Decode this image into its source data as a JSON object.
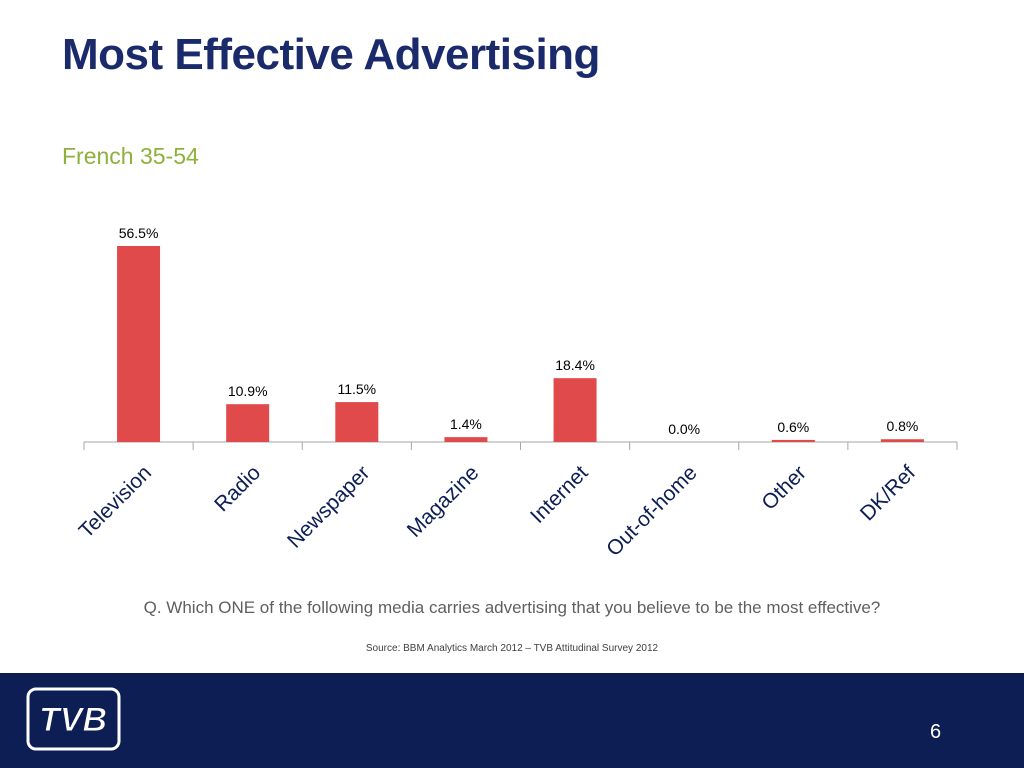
{
  "slide": {
    "title": "Most Effective Advertising",
    "subtitle": "French 35-54",
    "question": "Q. Which ONE of the following media carries advertising that you believe to be the most effective?",
    "source": "Source: BBM Analytics March 2012 – TVB Attitudinal Survey 2012",
    "page_number": "6",
    "logo_text": "TVB"
  },
  "colors": {
    "title": "#1b2a6b",
    "subtitle": "#8db13b",
    "bar": "#e04a4a",
    "footer": "#0d1e55"
  },
  "chart_data": {
    "type": "bar",
    "categories": [
      "Television",
      "Radio",
      "Newspaper",
      "Magazine",
      "Internet",
      "Out-of-home",
      "Other",
      "DK/Ref"
    ],
    "values": [
      56.5,
      10.9,
      11.5,
      1.4,
      18.4,
      0.0,
      0.6,
      0.8
    ],
    "data_labels": [
      "56.5%",
      "10.9%",
      "11.5%",
      "1.4%",
      "18.4%",
      "0.0%",
      "0.6%",
      "0.8%"
    ],
    "title": "",
    "xlabel": "",
    "ylabel": "",
    "ylim": [
      0,
      60
    ],
    "grid": false,
    "legend": "none"
  }
}
